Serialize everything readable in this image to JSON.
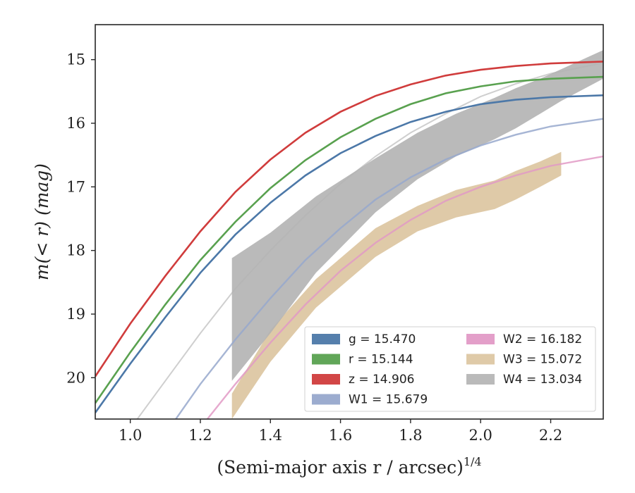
{
  "chart_data": {
    "type": "line",
    "xlabel": "(Semi-major axis r / arcsec)",
    "xlabel_exponent": "1/4",
    "ylabel": "m(< r) (mag)",
    "xlim": [
      0.9,
      2.35
    ],
    "ylim": [
      20.65,
      14.45
    ],
    "y_inverted": true,
    "x_ticks": [
      "1.0",
      "1.2",
      "1.4",
      "1.6",
      "1.8",
      "2.0",
      "2.2"
    ],
    "y_ticks": [
      "15",
      "16",
      "17",
      "18",
      "19",
      "20"
    ],
    "legend_placement": "lower-right",
    "legend_columns": 2,
    "series": [
      {
        "key": "g",
        "name": "g = 15.470",
        "color": "#4c78a8",
        "kind": "line",
        "x": [
          0.9,
          1.0,
          1.1,
          1.2,
          1.3,
          1.4,
          1.5,
          1.6,
          1.7,
          1.8,
          1.9,
          2.0,
          2.1,
          2.2,
          2.35
        ],
        "y": [
          20.55,
          19.78,
          19.05,
          18.35,
          17.75,
          17.25,
          16.82,
          16.47,
          16.2,
          15.98,
          15.82,
          15.7,
          15.63,
          15.59,
          15.56
        ]
      },
      {
        "key": "r",
        "name": "r = 15.144",
        "color": "#59a14f",
        "kind": "line",
        "x": [
          0.9,
          1.0,
          1.1,
          1.2,
          1.3,
          1.4,
          1.5,
          1.6,
          1.7,
          1.8,
          1.9,
          2.0,
          2.1,
          2.2,
          2.35
        ],
        "y": [
          20.4,
          19.6,
          18.85,
          18.15,
          17.55,
          17.02,
          16.58,
          16.22,
          15.93,
          15.7,
          15.53,
          15.42,
          15.34,
          15.3,
          15.27
        ]
      },
      {
        "key": "z",
        "name": "z = 14.906",
        "color": "#d03c3c",
        "kind": "line",
        "x": [
          0.9,
          1.0,
          1.1,
          1.2,
          1.3,
          1.4,
          1.5,
          1.6,
          1.7,
          1.8,
          1.9,
          2.0,
          2.1,
          2.2,
          2.35
        ],
        "y": [
          19.98,
          19.15,
          18.4,
          17.7,
          17.08,
          16.57,
          16.15,
          15.82,
          15.57,
          15.39,
          15.25,
          15.16,
          15.1,
          15.06,
          15.03
        ]
      },
      {
        "key": "W1",
        "name": "W1 = 15.679",
        "color": "#97a8cc",
        "kind": "line",
        "x": [
          1.13,
          1.2,
          1.3,
          1.4,
          1.5,
          1.6,
          1.7,
          1.8,
          1.9,
          2.0,
          2.1,
          2.2,
          2.35
        ],
        "y": [
          20.65,
          20.1,
          19.4,
          18.75,
          18.15,
          17.65,
          17.2,
          16.85,
          16.57,
          16.35,
          16.18,
          16.05,
          15.93
        ]
      },
      {
        "key": "W2",
        "name": "W2 = 16.182",
        "color": "#e29ac6",
        "kind": "line",
        "x": [
          1.22,
          1.3,
          1.4,
          1.5,
          1.6,
          1.7,
          1.8,
          1.9,
          2.0,
          2.1,
          2.2,
          2.35
        ],
        "y": [
          20.65,
          20.1,
          19.45,
          18.85,
          18.32,
          17.88,
          17.52,
          17.22,
          17.0,
          16.82,
          16.67,
          16.52
        ]
      },
      {
        "key": "W3",
        "name": "W3 = 15.072",
        "color": "#dcc49e",
        "kind": "band",
        "x": [
          1.29,
          1.4,
          1.53,
          1.7,
          1.82,
          1.93,
          2.04,
          2.1,
          2.17,
          2.23
        ],
        "y_upper": [
          20.25,
          19.25,
          18.45,
          17.65,
          17.3,
          17.05,
          16.9,
          16.75,
          16.6,
          16.45
        ],
        "y_lower": [
          20.65,
          19.75,
          18.9,
          18.1,
          17.7,
          17.48,
          17.35,
          17.2,
          17.0,
          16.82
        ]
      },
      {
        "key": "W4",
        "name": "W4 = 13.034",
        "color": "#b3b3b3",
        "kind": "band",
        "x": [
          1.29,
          1.4,
          1.53,
          1.7,
          1.82,
          1.93,
          2.04,
          2.1,
          2.17,
          2.23,
          2.35
        ],
        "y_upper": [
          18.12,
          17.72,
          17.15,
          16.55,
          16.15,
          15.85,
          15.6,
          15.45,
          15.3,
          15.15,
          14.85
        ],
        "y_lower": [
          20.05,
          19.3,
          18.35,
          17.4,
          16.88,
          16.52,
          16.25,
          16.08,
          15.85,
          15.65,
          15.3
        ]
      }
    ],
    "model_curves": [
      {
        "color": "#cfcfcf",
        "x": [
          1.02,
          1.1,
          1.2,
          1.3,
          1.4,
          1.5,
          1.6,
          1.7,
          1.8,
          1.9,
          2.0,
          2.1,
          2.2,
          2.35
        ],
        "y": [
          20.65,
          20.05,
          19.3,
          18.6,
          18.0,
          17.45,
          16.95,
          16.52,
          16.15,
          15.85,
          15.58,
          15.38,
          15.22,
          15.05
        ]
      }
    ]
  }
}
